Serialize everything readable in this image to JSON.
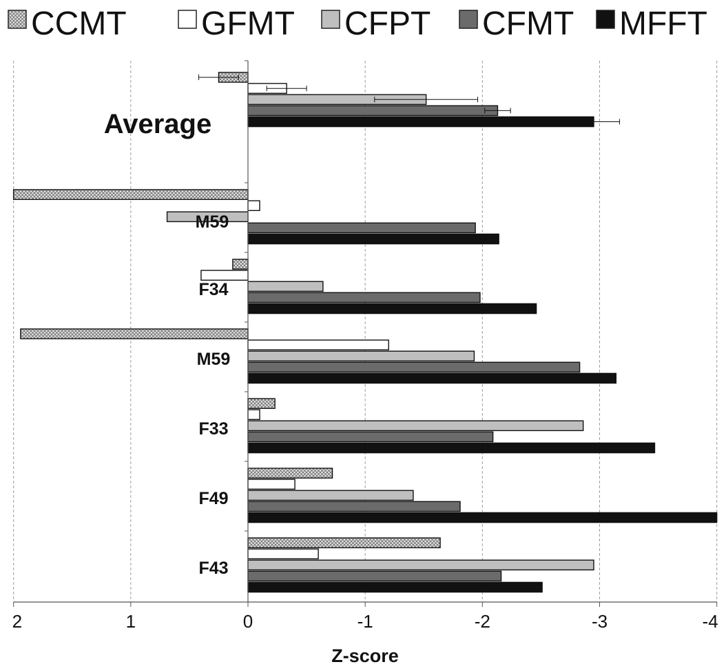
{
  "chart_data": {
    "type": "bar",
    "orientation": "horizontal",
    "xlabel": "Z-score",
    "xlim": [
      2,
      -4
    ],
    "x_reversed": true,
    "xticks": [
      {
        "value": 2,
        "label": "2"
      },
      {
        "value": 1,
        "label": "1"
      },
      {
        "value": 0,
        "label": "0"
      },
      {
        "value": -1,
        "label": "-1"
      },
      {
        "value": -2,
        "label": "-2"
      },
      {
        "value": -3,
        "label": "-3"
      },
      {
        "value": -4,
        "label": "-4"
      }
    ],
    "grid": "vertical dashed",
    "legend_position": "top",
    "categories": [
      "Average",
      "M59",
      "F34",
      "M59",
      "F33",
      "F49",
      "F43"
    ],
    "series": [
      {
        "name": "CCMT",
        "fill": "crosshatch",
        "color": "#d8d8d8",
        "values": [
          0.25,
          2.0,
          0.13,
          1.94,
          -0.23,
          -0.72,
          -1.64
        ],
        "errors": [
          0.17,
          null,
          null,
          null,
          null,
          null,
          null
        ]
      },
      {
        "name": "GFMT",
        "fill": "solid",
        "color": "#ffffff",
        "values": [
          -0.33,
          -0.1,
          0.4,
          -1.2,
          -0.1,
          -0.4,
          -0.6
        ],
        "errors": [
          0.17,
          null,
          null,
          null,
          null,
          null,
          null
        ]
      },
      {
        "name": "CFPT",
        "fill": "solid",
        "color": "#bfbfbf",
        "values": [
          -1.52,
          0.69,
          -0.64,
          -1.93,
          -2.86,
          -1.41,
          -2.95
        ],
        "errors": [
          0.44,
          null,
          null,
          null,
          null,
          null,
          null
        ]
      },
      {
        "name": "CFMT",
        "fill": "solid",
        "color": "#6b6b6b",
        "values": [
          -2.13,
          -1.94,
          -1.98,
          -2.83,
          -2.09,
          -1.81,
          -2.16
        ],
        "errors": [
          0.11,
          null,
          null,
          null,
          null,
          null,
          null
        ]
      },
      {
        "name": "MFFT",
        "fill": "solid",
        "color": "#111111",
        "values": [
          -2.95,
          -2.14,
          -2.46,
          -3.14,
          -3.47,
          -4.0,
          -2.51
        ],
        "errors": [
          0.22,
          null,
          null,
          null,
          null,
          null,
          null
        ]
      }
    ]
  }
}
